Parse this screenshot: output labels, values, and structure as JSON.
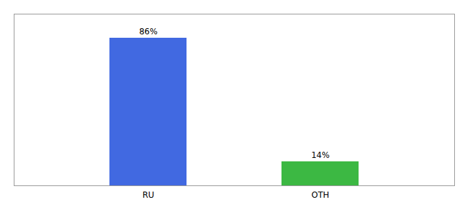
{
  "chart_data": {
    "type": "bar",
    "categories": [
      "RU",
      "OTH"
    ],
    "values": [
      86,
      14
    ],
    "value_labels": [
      "86%",
      "14%"
    ],
    "colors": [
      "#4169E1",
      "#3CB843"
    ],
    "ylim": [
      0,
      100
    ],
    "data_labels": true,
    "tick_labels": "x"
  }
}
